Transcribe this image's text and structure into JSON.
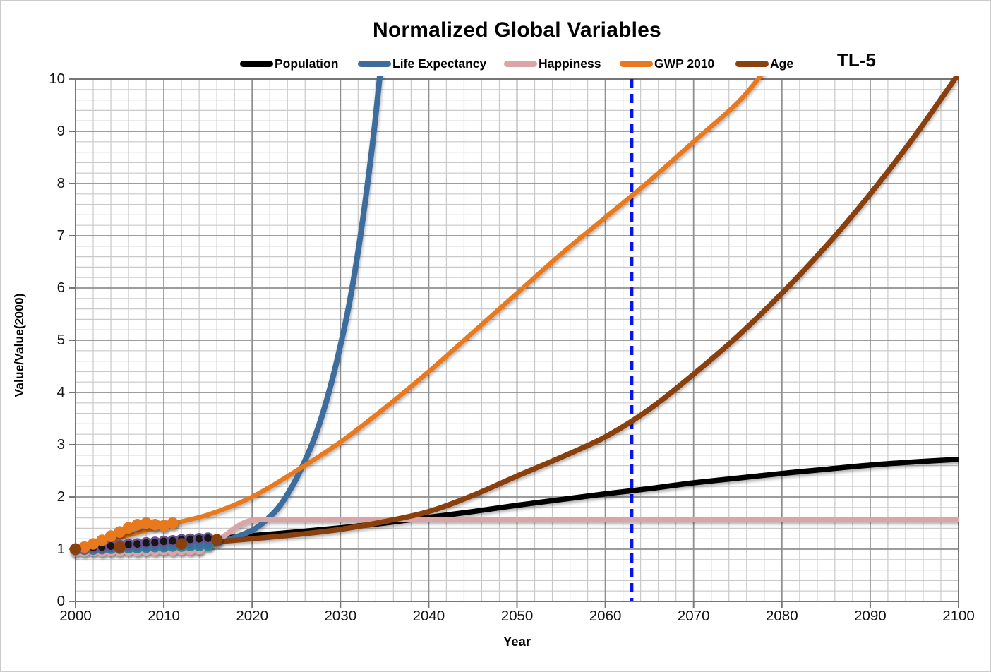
{
  "chart_data": {
    "type": "line",
    "title": "Normalized Global Variables",
    "annotation": "TL-5",
    "legend_position": "top",
    "grid": {
      "minor_color": "#C9C9C9",
      "major_color": "#8F8F8F",
      "border_color": "#767676",
      "minor_on": true,
      "major_on": true
    },
    "axes": {
      "x": {
        "label": "Year",
        "min": 2000,
        "max": 2100,
        "minor_step": 2,
        "major_ticks": [
          2000,
          2010,
          2020,
          2030,
          2040,
          2050,
          2060,
          2070,
          2080,
          2090,
          2100
        ]
      },
      "y": {
        "label": "Value/Value(2000)",
        "min": 0,
        "max": 10,
        "minor_step": 0.2,
        "major_ticks": [
          0,
          1,
          2,
          3,
          4,
          5,
          6,
          7,
          8,
          9,
          10
        ]
      }
    },
    "reference_line": {
      "name": "TL-5 attainment year",
      "x": 2063,
      "color": "#0713EF",
      "style": "dashed"
    },
    "series": [
      {
        "name": "Population",
        "color": "#000000",
        "x": [
          2000,
          2005,
          2010,
          2015,
          2020,
          2025,
          2030,
          2035,
          2040,
          2045,
          2050,
          2055,
          2060,
          2065,
          2070,
          2075,
          2080,
          2085,
          2090,
          2095,
          2100
        ],
        "values": [
          1.0,
          1.06,
          1.12,
          1.19,
          1.26,
          1.33,
          1.41,
          1.5,
          1.61,
          1.72,
          1.84,
          1.95,
          2.06,
          2.16,
          2.27,
          2.36,
          2.45,
          2.53,
          2.61,
          2.67,
          2.72
        ]
      },
      {
        "name": "Life Expectancy",
        "color": "#3E6D9D",
        "x": [
          2000,
          2005,
          2010,
          2014,
          2016,
          2018,
          2020,
          2021,
          2022,
          2023,
          2024,
          2025,
          2026,
          2027,
          2028,
          2029,
          2030,
          2031,
          2032,
          2033,
          2034,
          2035
        ],
        "values": [
          1.0,
          1.02,
          1.05,
          1.08,
          1.12,
          1.22,
          1.36,
          1.47,
          1.62,
          1.8,
          2.05,
          2.35,
          2.7,
          3.1,
          3.6,
          4.2,
          4.9,
          5.7,
          6.7,
          7.9,
          9.3,
          11.0
        ]
      },
      {
        "name": "Happiness",
        "color": "#DBA5A8",
        "x": [
          2000,
          2004,
          2008,
          2012,
          2015,
          2016,
          2017,
          2018,
          2019,
          2020,
          2022,
          2030,
          2050,
          2075,
          2100
        ],
        "values": [
          0.98,
          1.01,
          1.04,
          1.08,
          1.12,
          1.17,
          1.27,
          1.4,
          1.5,
          1.55,
          1.57,
          1.57,
          1.57,
          1.57,
          1.57
        ]
      },
      {
        "name": "GWP 2010",
        "color": "#E8791E",
        "x": [
          2000,
          2005,
          2010,
          2015,
          2020,
          2025,
          2030,
          2035,
          2040,
          2045,
          2050,
          2055,
          2060,
          2065,
          2070,
          2075,
          2078
        ],
        "values": [
          1.0,
          1.22,
          1.45,
          1.66,
          2.0,
          2.5,
          3.05,
          3.7,
          4.4,
          5.15,
          5.9,
          6.65,
          7.35,
          8.05,
          8.8,
          9.55,
          10.15
        ]
      },
      {
        "name": "Age",
        "color": "#8A400F",
        "x": [
          2000,
          2005,
          2010,
          2015,
          2020,
          2025,
          2030,
          2035,
          2040,
          2045,
          2050,
          2055,
          2060,
          2065,
          2070,
          2075,
          2080,
          2085,
          2090,
          2095,
          2100
        ],
        "values": [
          0.98,
          1.03,
          1.08,
          1.13,
          1.2,
          1.28,
          1.38,
          1.53,
          1.72,
          2.03,
          2.4,
          2.76,
          3.15,
          3.68,
          4.35,
          5.08,
          5.9,
          6.8,
          7.8,
          8.9,
          10.1
        ]
      }
    ],
    "historical_markers": [
      {
        "series": "Happiness",
        "fill": "#E2A0A8",
        "ring": "#E2A0A8",
        "years": [
          2000,
          2001,
          2002,
          2003,
          2004,
          2005,
          2006,
          2007,
          2008,
          2009,
          2010,
          2011,
          2012,
          2013,
          2014
        ],
        "values": [
          0.97,
          0.97,
          0.98,
          0.97,
          0.98,
          0.98,
          0.99,
          0.98,
          0.99,
          0.99,
          1.0,
          0.99,
          1.0,
          1.0,
          1.01
        ]
      },
      {
        "series": "Life Expectancy",
        "fill": "#3E6D9D",
        "ring": "#2F8399",
        "years": [
          2000,
          2001,
          2002,
          2003,
          2004,
          2005,
          2006,
          2007,
          2008,
          2009,
          2010,
          2011,
          2012,
          2013,
          2014,
          2015
        ],
        "values": [
          0.99,
          1.0,
          1.0,
          1.01,
          1.02,
          1.02,
          1.03,
          1.03,
          1.04,
          1.05,
          1.05,
          1.06,
          1.06,
          1.07,
          1.07,
          1.08
        ]
      },
      {
        "series": "Population",
        "fill": "#141414",
        "ring": "#6A5394",
        "years": [
          2000,
          2001,
          2002,
          2003,
          2004,
          2005,
          2006,
          2007,
          2008,
          2009,
          2010,
          2011,
          2012,
          2013,
          2014,
          2015
        ],
        "values": [
          1.0,
          1.01,
          1.03,
          1.04,
          1.06,
          1.07,
          1.09,
          1.1,
          1.12,
          1.13,
          1.15,
          1.16,
          1.18,
          1.19,
          1.2,
          1.21
        ]
      },
      {
        "series": "GWP 2010",
        "fill": "#E8791E",
        "ring": "#E8791E",
        "years": [
          2000,
          2001,
          2002,
          2003,
          2004,
          2005,
          2006,
          2007,
          2008,
          2009,
          2010,
          2011
        ],
        "values": [
          1.0,
          1.04,
          1.1,
          1.17,
          1.25,
          1.33,
          1.41,
          1.47,
          1.5,
          1.47,
          1.45,
          1.5
        ]
      },
      {
        "series": "Age",
        "fill": "#8A400F",
        "ring": "#8A400F",
        "years": [
          2000,
          2005,
          2012,
          2016
        ],
        "values": [
          1.0,
          1.04,
          1.1,
          1.18
        ]
      }
    ]
  }
}
